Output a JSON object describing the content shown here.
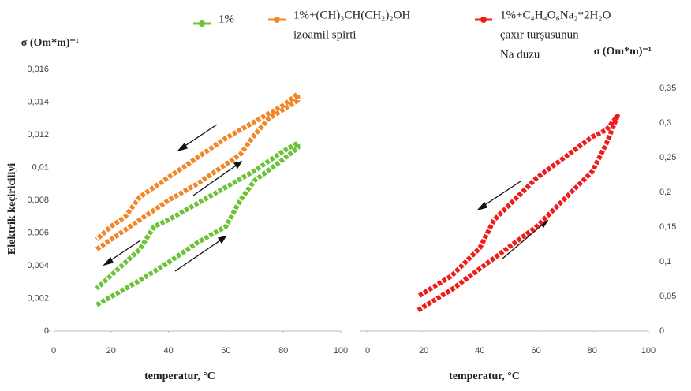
{
  "chart_data": [
    {
      "type": "line",
      "y_label": "σ (Om*m)⁻¹",
      "y_title": "Elektrik keçiriciliyi",
      "x_label": "temperatur, °C",
      "xlim": [
        0,
        100
      ],
      "xticks": [
        0,
        20,
        40,
        60,
        80,
        100
      ],
      "ylim": [
        0,
        0.016
      ],
      "yticks": [
        0,
        {
          "value": 0.002,
          "label": "0,002"
        },
        {
          "value": 0.004,
          "label": "0,004"
        },
        {
          "value": 0.006,
          "label": "0,006"
        },
        {
          "value": 0.008,
          "label": "0,008"
        },
        {
          "value": 0.01,
          "label": "0,01"
        },
        {
          "value": 0.012,
          "label": "0,012"
        },
        {
          "value": 0.014,
          "label": "0,014"
        },
        {
          "value": 0.016,
          "label": "0,016"
        }
      ],
      "series": [
        {
          "name": [
            "1%"
          ],
          "color": "#6cc33a",
          "x": [
            15,
            20,
            30,
            40,
            50,
            60,
            65,
            70,
            80,
            85,
            85,
            80,
            70,
            60,
            50,
            40,
            35,
            30,
            25,
            15
          ],
          "values": [
            0.0016,
            0.0021,
            0.0031,
            0.0042,
            0.0054,
            0.0064,
            0.008,
            0.0092,
            0.0105,
            0.0112,
            0.0115,
            0.011,
            0.0098,
            0.0088,
            0.0078,
            0.0068,
            0.0064,
            0.005,
            0.0042,
            0.0026
          ]
        },
        {
          "name": [
            "1%+(CH)₃CH(CH₂)₂OH",
            "izoamil spirti"
          ],
          "color": "#f0882a",
          "x": [
            15,
            20,
            30,
            40,
            50,
            60,
            65,
            70,
            75,
            85,
            85,
            80,
            70,
            60,
            50,
            40,
            30,
            25,
            20,
            15
          ],
          "values": [
            0.005,
            0.0056,
            0.0068,
            0.008,
            0.009,
            0.0102,
            0.0108,
            0.012,
            0.013,
            0.0141,
            0.0145,
            0.0138,
            0.0128,
            0.0118,
            0.0106,
            0.0094,
            0.0082,
            0.007,
            0.0064,
            0.0056
          ]
        }
      ]
    },
    {
      "type": "line",
      "y_label": "σ (Om*m)⁻¹",
      "x_label": "temperatur, °C",
      "xlim": [
        0,
        100
      ],
      "xticks": [
        0,
        20,
        40,
        60,
        80,
        100
      ],
      "ylim": [
        0,
        0.35
      ],
      "yticks": [
        0,
        {
          "value": 0.05,
          "label": "0,05"
        },
        {
          "value": 0.1,
          "label": "0,1"
        },
        {
          "value": 0.15,
          "label": "0,15"
        },
        {
          "value": 0.2,
          "label": "0,2"
        },
        {
          "value": 0.25,
          "label": "0,25"
        },
        {
          "value": 0.3,
          "label": "0,3"
        },
        {
          "value": 0.35,
          "label": "0,35"
        }
      ],
      "series": [
        {
          "name": [
            "1%+C₄H₄O₆Na₂*2H₂O",
            "çaxır turşusunun",
            "Na duzu"
          ],
          "color": "#f01c1c",
          "x": [
            18,
            30,
            40,
            50,
            60,
            70,
            80,
            85,
            88,
            89,
            85,
            80,
            70,
            60,
            50,
            45,
            40,
            30,
            18
          ],
          "values": [
            0.03,
            0.06,
            0.09,
            0.12,
            0.15,
            0.19,
            0.23,
            0.27,
            0.3,
            0.31,
            0.29,
            0.28,
            0.25,
            0.22,
            0.18,
            0.16,
            0.12,
            0.08,
            0.05
          ]
        }
      ]
    }
  ]
}
